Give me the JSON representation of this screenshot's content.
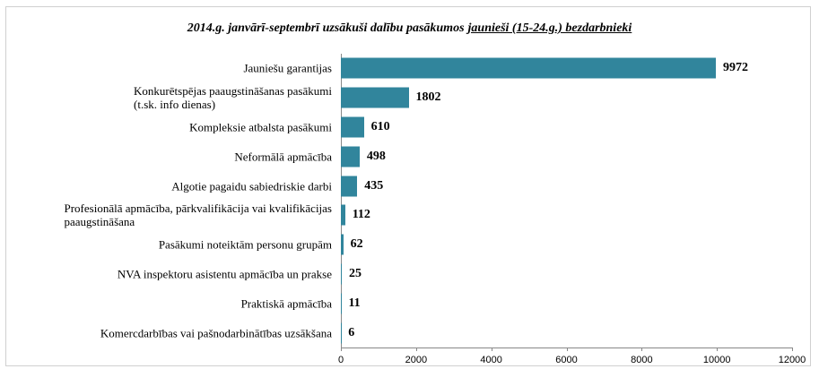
{
  "chart_data": {
    "type": "bar",
    "orientation": "horizontal",
    "title": [
      "2014.g. janvārī-septembrī uzsākuši dalību pasākumos",
      "jaunieši (15-24.g.) bezdarbnieki"
    ],
    "categories": [
      "Jauniešu garantijas",
      "Konkurētspējas paaugstināšanas pasākumi\n(t.sk. info dienas)",
      "Kompleksie atbalsta pasākumi",
      "Neformālā apmācība",
      "Algotie pagaidu sabiedriskie darbi",
      "Profesionālā apmācība, pārkvalifikācija vai kvalifikācijas\npaaugstināšana",
      "Pasākumi noteiktām personu grupām",
      "NVA inspektoru asistentu apmācība un prakse",
      "Praktiskā apmācība",
      "Komercdarbības vai pašnodarbinātības uzsākšana"
    ],
    "values": [
      9972,
      1802,
      610,
      498,
      435,
      112,
      62,
      25,
      11,
      6
    ],
    "color": "#31859c",
    "xlim": [
      0,
      12000
    ],
    "xticks": [
      0,
      2000,
      4000,
      6000,
      8000,
      10000,
      12000
    ]
  }
}
